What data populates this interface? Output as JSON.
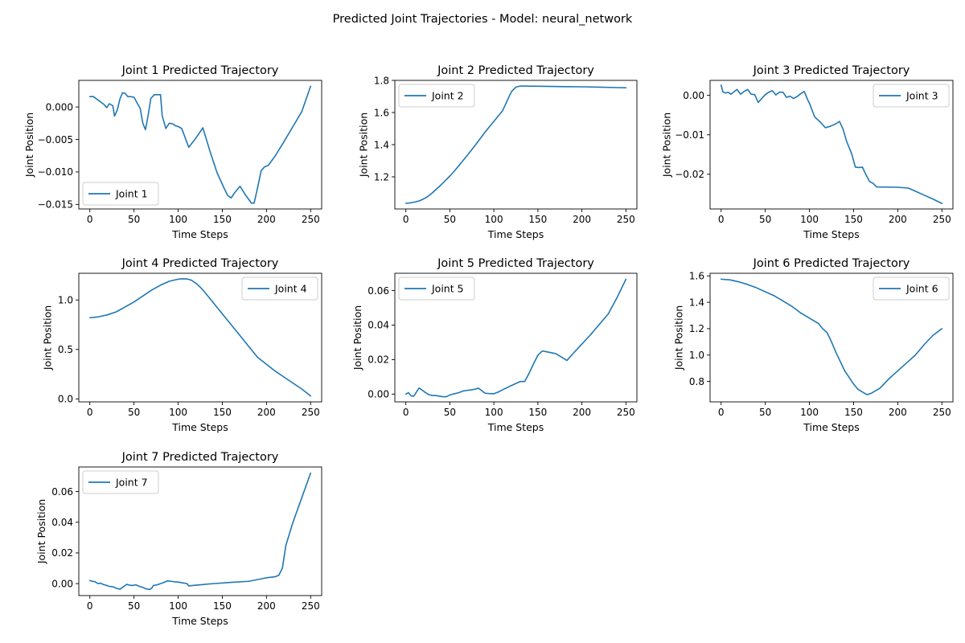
{
  "figure": {
    "title": "Predicted Joint Trajectories - Model: neural_network"
  },
  "style": {
    "line_color": "#1f77b4",
    "axis_color": "#000000",
    "legend_border_color": "#cccccc"
  },
  "chart_data": [
    {
      "type": "line",
      "title": "Joint 1 Predicted Trajectory",
      "xlabel": "Time Steps",
      "ylabel": "Joint Position",
      "xlim": [
        -12.5,
        262.5
      ],
      "ylim": [
        -0.0157,
        0.0041
      ],
      "xticks": [
        0,
        50,
        100,
        150,
        200,
        250
      ],
      "yticks": [
        0.0,
        -0.005,
        -0.01,
        -0.015
      ],
      "ytick_labels": [
        "0.000",
        "−0.005",
        "−0.010",
        "−0.015"
      ],
      "legend": "lower-left",
      "grid": false,
      "series": [
        {
          "name": "Joint 1",
          "x": [
            0,
            4,
            8,
            12,
            16,
            19,
            22,
            26,
            28,
            31,
            34,
            37,
            40,
            43,
            46,
            50,
            54,
            57,
            60,
            63,
            66,
            69,
            73,
            76,
            80,
            82,
            86,
            90,
            94,
            97,
            100,
            104,
            112,
            120,
            128,
            136,
            144,
            152,
            156,
            160,
            164,
            170,
            176,
            183,
            186,
            190,
            194,
            198,
            202,
            210,
            220,
            230,
            240,
            250
          ],
          "y": [
            0.0016,
            0.0016,
            0.0012,
            0.0008,
            0.0004,
            -0.0001,
            0.0005,
            0.0002,
            -0.0014,
            -0.0005,
            0.0012,
            0.0022,
            0.0021,
            0.0016,
            0.0016,
            0.0015,
            0.0005,
            -0.0002,
            -0.0025,
            -0.0035,
            -0.0013,
            0.0013,
            0.0019,
            0.0019,
            0.0019,
            -0.0014,
            -0.0033,
            -0.0025,
            -0.0026,
            -0.0029,
            -0.003,
            -0.0033,
            -0.0062,
            -0.0048,
            -0.0032,
            -0.0068,
            -0.0101,
            -0.0125,
            -0.0136,
            -0.014,
            -0.0132,
            -0.0122,
            -0.0135,
            -0.0148,
            -0.0148,
            -0.0124,
            -0.0098,
            -0.0092,
            -0.009,
            -0.0075,
            -0.0053,
            -0.003,
            -0.0007,
            0.0032
          ]
        }
      ]
    },
    {
      "type": "line",
      "title": "Joint 2 Predicted Trajectory",
      "xlabel": "Time Steps",
      "ylabel": "Joint Position",
      "xlim": [
        -12.5,
        262.5
      ],
      "ylim": [
        1.0,
        1.8
      ],
      "xticks": [
        0,
        50,
        100,
        150,
        200,
        250
      ],
      "yticks": [
        1.2,
        1.4,
        1.6,
        1.8
      ],
      "ytick_labels": [
        "1.2",
        "1.4",
        "1.6",
        "1.8"
      ],
      "legend": "upper-left",
      "grid": false,
      "series": [
        {
          "name": "Joint 2",
          "x": [
            0,
            5,
            10,
            15,
            20,
            25,
            30,
            35,
            40,
            45,
            50,
            55,
            60,
            70,
            80,
            90,
            100,
            110,
            115,
            120,
            125,
            130,
            140,
            160,
            180,
            200,
            220,
            240,
            250
          ],
          "y": [
            1.035,
            1.038,
            1.043,
            1.05,
            1.062,
            1.078,
            1.1,
            1.125,
            1.15,
            1.178,
            1.205,
            1.235,
            1.268,
            1.335,
            1.405,
            1.478,
            1.545,
            1.612,
            1.672,
            1.73,
            1.758,
            1.765,
            1.764,
            1.763,
            1.761,
            1.76,
            1.758,
            1.755,
            1.754
          ]
        }
      ]
    },
    {
      "type": "line",
      "title": "Joint 3 Predicted Trajectory",
      "xlabel": "Time Steps",
      "ylabel": "Joint Position",
      "xlim": [
        -12.5,
        262.5
      ],
      "ylim": [
        -0.0288,
        0.0038
      ],
      "xticks": [
        0,
        50,
        100,
        150,
        200,
        250
      ],
      "yticks": [
        0.0,
        -0.01,
        -0.02
      ],
      "ytick_labels": [
        "0.00",
        "−0.01",
        "−0.02"
      ],
      "legend": "upper-right",
      "grid": false,
      "series": [
        {
          "name": "Joint 3",
          "x": [
            0,
            2,
            5,
            8,
            11,
            14,
            18,
            22,
            26,
            30,
            34,
            38,
            42,
            46,
            50,
            54,
            58,
            62,
            66,
            70,
            74,
            78,
            82,
            86,
            90,
            94,
            98,
            100,
            106,
            112,
            118,
            124,
            130,
            134,
            138,
            142,
            148,
            152,
            156,
            160,
            164,
            168,
            172,
            176,
            200,
            212,
            220,
            230,
            240,
            250
          ],
          "y": [
            0.0026,
            0.0009,
            0.0006,
            0.0008,
            0.0003,
            0.0008,
            0.0015,
            0.0003,
            0.001,
            0.0015,
            0.0003,
            0.0002,
            -0.0018,
            -0.0008,
            0.0002,
            0.0008,
            0.0012,
            0.0001,
            0.0008,
            0.0008,
            -0.0005,
            -0.0002,
            -0.0008,
            -0.0003,
            0.0004,
            0.001,
            -0.0011,
            -0.002,
            -0.0055,
            -0.0067,
            -0.0082,
            -0.0078,
            -0.0072,
            -0.0066,
            -0.0085,
            -0.0116,
            -0.0149,
            -0.0182,
            -0.0183,
            -0.0182,
            -0.0201,
            -0.0218,
            -0.0223,
            -0.0232,
            -0.0233,
            -0.0235,
            -0.0243,
            -0.0253,
            -0.0263,
            -0.0274
          ]
        }
      ]
    },
    {
      "type": "line",
      "title": "Joint 4 Predicted Trajectory",
      "xlabel": "Time Steps",
      "ylabel": "Joint Position",
      "xlim": [
        -12.5,
        262.5
      ],
      "ylim": [
        -0.03,
        1.27
      ],
      "xticks": [
        0,
        50,
        100,
        150,
        200,
        250
      ],
      "yticks": [
        0.0,
        0.5,
        1.0
      ],
      "ytick_labels": [
        "0.0",
        "0.5",
        "1.0"
      ],
      "legend": "upper-right",
      "grid": false,
      "series": [
        {
          "name": "Joint 4",
          "x": [
            0,
            10,
            20,
            30,
            40,
            50,
            60,
            70,
            80,
            90,
            100,
            105,
            110,
            115,
            120,
            125,
            130,
            140,
            150,
            160,
            170,
            180,
            190,
            200,
            210,
            220,
            230,
            240,
            250
          ],
          "y": [
            0.82,
            0.83,
            0.85,
            0.88,
            0.93,
            0.98,
            1.04,
            1.1,
            1.15,
            1.19,
            1.21,
            1.215,
            1.213,
            1.2,
            1.17,
            1.13,
            1.08,
            0.97,
            0.86,
            0.75,
            0.64,
            0.53,
            0.42,
            0.35,
            0.28,
            0.22,
            0.16,
            0.1,
            0.03
          ]
        }
      ]
    },
    {
      "type": "line",
      "title": "Joint 5 Predicted Trajectory",
      "xlabel": "Time Steps",
      "ylabel": "Joint Position",
      "xlim": [
        -12.5,
        262.5
      ],
      "ylim": [
        -0.0045,
        0.07
      ],
      "xticks": [
        0,
        50,
        100,
        150,
        200,
        250
      ],
      "yticks": [
        0.0,
        0.02,
        0.04,
        0.06
      ],
      "ytick_labels": [
        "0.00",
        "0.02",
        "0.04",
        "0.06"
      ],
      "legend": "upper-left",
      "grid": false,
      "series": [
        {
          "name": "Joint 5",
          "x": [
            0,
            3,
            6,
            9,
            12,
            15,
            18,
            22,
            26,
            30,
            34,
            38,
            42,
            46,
            50,
            55,
            60,
            65,
            70,
            75,
            80,
            82,
            85,
            90,
            95,
            100,
            105,
            110,
            120,
            130,
            135,
            140,
            145,
            150,
            155,
            160,
            165,
            170,
            175,
            183,
            190,
            200,
            210,
            220,
            230,
            240,
            250
          ],
          "y": [
            0.0,
            0.0008,
            -0.001,
            -0.0012,
            0.0012,
            0.0035,
            0.0025,
            0.001,
            -0.0003,
            -0.0008,
            -0.0008,
            -0.0012,
            -0.0015,
            -0.0015,
            -0.0005,
            0.0002,
            0.0008,
            0.0018,
            0.0022,
            0.0025,
            0.003,
            0.0035,
            0.0025,
            0.0005,
            0.0003,
            0.0002,
            0.0012,
            0.0025,
            0.005,
            0.0073,
            0.0073,
            0.012,
            0.0175,
            0.0225,
            0.025,
            0.0245,
            0.024,
            0.0235,
            0.022,
            0.0195,
            0.0235,
            0.029,
            0.0345,
            0.0405,
            0.0465,
            0.056,
            0.0665
          ]
        }
      ]
    },
    {
      "type": "line",
      "title": "Joint 6 Predicted Trajectory",
      "xlabel": "Time Steps",
      "ylabel": "Joint Position",
      "xlim": [
        -12.5,
        262.5
      ],
      "ylim": [
        0.645,
        1.62
      ],
      "xticks": [
        0,
        50,
        100,
        150,
        200,
        250
      ],
      "yticks": [
        0.8,
        1.0,
        1.2,
        1.4,
        1.6
      ],
      "ytick_labels": [
        "0.8",
        "1.0",
        "1.2",
        "1.4",
        "1.6"
      ],
      "legend": "upper-right",
      "grid": false,
      "series": [
        {
          "name": "Joint 6",
          "x": [
            0,
            10,
            20,
            30,
            40,
            50,
            60,
            70,
            80,
            90,
            100,
            110,
            115,
            120,
            125,
            130,
            140,
            150,
            155,
            160,
            165,
            170,
            180,
            190,
            200,
            210,
            220,
            230,
            240,
            250
          ],
          "y": [
            1.575,
            1.57,
            1.555,
            1.535,
            1.51,
            1.48,
            1.45,
            1.41,
            1.37,
            1.32,
            1.28,
            1.24,
            1.2,
            1.17,
            1.1,
            1.02,
            0.88,
            0.78,
            0.74,
            0.72,
            0.7,
            0.71,
            0.75,
            0.82,
            0.88,
            0.94,
            1.0,
            1.08,
            1.15,
            1.2
          ]
        }
      ]
    },
    {
      "type": "line",
      "title": "Joint 7 Predicted Trajectory",
      "xlabel": "Time Steps",
      "ylabel": "Joint Position",
      "xlim": [
        -12.5,
        262.5
      ],
      "ylim": [
        -0.0078,
        0.076
      ],
      "xticks": [
        0,
        50,
        100,
        150,
        200,
        250
      ],
      "yticks": [
        0.0,
        0.02,
        0.04,
        0.06
      ],
      "ytick_labels": [
        "0.00",
        "0.02",
        "0.04",
        "0.06"
      ],
      "legend": "upper-left",
      "grid": false,
      "series": [
        {
          "name": "Joint 7",
          "x": [
            0,
            3,
            6,
            9,
            12,
            15,
            18,
            22,
            26,
            30,
            34,
            38,
            42,
            45,
            48,
            52,
            56,
            60,
            64,
            68,
            70,
            72,
            76,
            80,
            84,
            88,
            92,
            96,
            100,
            105,
            110,
            112,
            120,
            140,
            160,
            180,
            200,
            210,
            214,
            218,
            222,
            230,
            240,
            250
          ],
          "y": [
            0.002,
            0.0015,
            0.0012,
            0.0,
            0.0003,
            -0.0005,
            -0.001,
            -0.0018,
            -0.002,
            -0.003,
            -0.0037,
            -0.002,
            -0.0005,
            -0.001,
            -0.0012,
            -0.0008,
            -0.0018,
            -0.0025,
            -0.0035,
            -0.0038,
            -0.003,
            -0.0012,
            -0.0008,
            0.0,
            0.0008,
            0.0018,
            0.0015,
            0.0012,
            0.001,
            0.0005,
            0.0,
            -0.0015,
            -0.001,
            0.0,
            0.0008,
            0.0015,
            0.0038,
            0.0045,
            0.0055,
            0.01,
            0.025,
            0.04,
            0.056,
            0.072
          ]
        }
      ]
    }
  ]
}
